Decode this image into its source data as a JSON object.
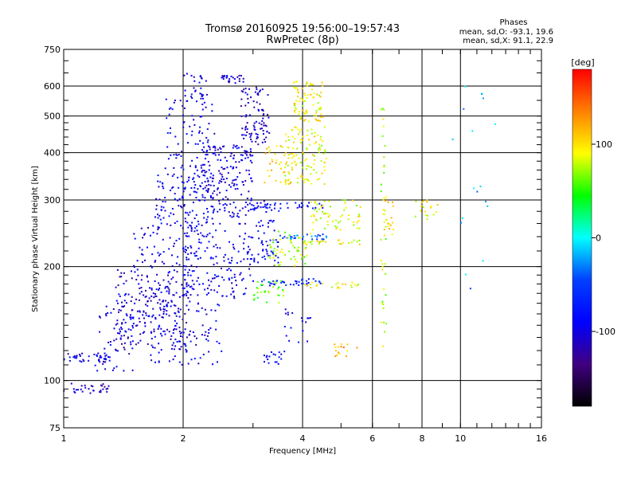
{
  "chart_data": {
    "type": "scatter",
    "title": "Tromsø 20160925 19:56:00–19:57:43",
    "subtitle": "RwPretec (8p)",
    "xlabel": "Frequency [MHz]",
    "ylabel": "Stationary phase Virtual Height [km]",
    "x_scale": "log",
    "y_scale": "log",
    "xlim": [
      1,
      16
    ],
    "ylim": [
      75,
      750
    ],
    "x_ticks": [
      1,
      2,
      4,
      6,
      8,
      10,
      16
    ],
    "y_ticks": [
      75,
      100,
      200,
      300,
      400,
      500,
      600,
      750
    ],
    "grid": true,
    "legend": {
      "heading": "Phases",
      "lines": [
        "mean, sd,O: -93.1, 19.6",
        "mean, sd,X:  91.1, 22.9"
      ],
      "placement": "top-right"
    },
    "colorbar": {
      "label": "[deg]",
      "range": [
        -180,
        180
      ],
      "ticks": [
        100,
        0,
        -100
      ],
      "colors": [
        "#ff0000",
        "#ff8000",
        "#ffff00",
        "#00ff00",
        "#00ffff",
        "#0040ff",
        "#0000ff",
        "#400080",
        "#000000"
      ]
    },
    "clusters": [
      {
        "x": [
          1.0,
          1.3
        ],
        "y": [
          92,
          99
        ],
        "phase": -110,
        "n": 30
      },
      {
        "x": [
          1.0,
          1.35
        ],
        "y": [
          112,
          118
        ],
        "phase": -100,
        "n": 35
      },
      {
        "x": [
          1.2,
          1.5
        ],
        "y": [
          105,
          160
        ],
        "phase": -100,
        "n": 60
      },
      {
        "x": [
          1.35,
          2.1
        ],
        "y": [
          120,
          200
        ],
        "phase": -105,
        "n": 220
      },
      {
        "x": [
          1.6,
          2.5
        ],
        "y": [
          110,
          180
        ],
        "phase": -95,
        "n": 120
      },
      {
        "x": [
          1.5,
          2.2
        ],
        "y": [
          200,
          260
        ],
        "phase": -100,
        "n": 70
      },
      {
        "x": [
          1.7,
          2.4
        ],
        "y": [
          260,
          350
        ],
        "phase": -90,
        "n": 120
      },
      {
        "x": [
          1.8,
          2.4
        ],
        "y": [
          350,
          560
        ],
        "phase": -95,
        "n": 90
      },
      {
        "x": [
          2.0,
          2.3
        ],
        "y": [
          560,
          650
        ],
        "phase": -100,
        "n": 25
      },
      {
        "x": [
          2.5,
          2.85
        ],
        "y": [
          610,
          640
        ],
        "phase": -105,
        "n": 25
      },
      {
        "x": [
          2.2,
          3.0
        ],
        "y": [
          270,
          420
        ],
        "phase": -100,
        "n": 180
      },
      {
        "x": [
          2.8,
          3.3
        ],
        "y": [
          420,
          600
        ],
        "phase": -110,
        "n": 90
      },
      {
        "x": [
          2.0,
          3.0
        ],
        "y": [
          165,
          260
        ],
        "phase": -95,
        "n": 150
      },
      {
        "x": [
          3.0,
          3.5
        ],
        "y": [
          200,
          300
        ],
        "phase": -85,
        "n": 60
      },
      {
        "x": [
          3.0,
          4.5
        ],
        "y": [
          285,
          295
        ],
        "phase": -80,
        "n": 35
      },
      {
        "x": [
          3.0,
          4.5
        ],
        "y": [
          178,
          186
        ],
        "phase": -70,
        "n": 40
      },
      {
        "x": [
          3.5,
          4.6
        ],
        "y": [
          236,
          244
        ],
        "phase": -40,
        "n": 30
      },
      {
        "x": [
          3.2,
          3.6
        ],
        "y": [
          110,
          120
        ],
        "phase": -90,
        "n": 18
      },
      {
        "x": [
          3.6,
          4.2
        ],
        "y": [
          125,
          155
        ],
        "phase": -90,
        "n": 18
      },
      {
        "x": [
          3.6,
          4.6
        ],
        "y": [
          330,
          470
        ],
        "phase": 90,
        "n": 110
      },
      {
        "x": [
          3.8,
          4.5
        ],
        "y": [
          480,
          620
        ],
        "phase": 95,
        "n": 80
      },
      {
        "x": [
          3.2,
          3.8
        ],
        "y": [
          330,
          420
        ],
        "phase": 100,
        "n": 40
      },
      {
        "x": [
          3.3,
          4.2
        ],
        "y": [
          200,
          250
        ],
        "phase": 75,
        "n": 55
      },
      {
        "x": [
          3.0,
          3.6
        ],
        "y": [
          160,
          185
        ],
        "phase": 60,
        "n": 30
      },
      {
        "x": [
          4.0,
          5.6
        ],
        "y": [
          175,
          182
        ],
        "phase": 90,
        "n": 22
      },
      {
        "x": [
          4.0,
          5.6
        ],
        "y": [
          228,
          236
        ],
        "phase": 90,
        "n": 25
      },
      {
        "x": [
          4.2,
          5.6
        ],
        "y": [
          250,
          300
        ],
        "phase": 85,
        "n": 60
      },
      {
        "x": [
          4.8,
          5.5
        ],
        "y": [
          115,
          125
        ],
        "phase": 120,
        "n": 15
      },
      {
        "x": [
          6.3,
          6.5
        ],
        "y": [
          120,
          560
        ],
        "phase": 80,
        "n": 40
      },
      {
        "x": [
          6.4,
          6.8
        ],
        "y": [
          240,
          300
        ],
        "phase": 100,
        "n": 18
      },
      {
        "x": [
          7.6,
          8.8
        ],
        "y": [
          265,
          300
        ],
        "phase": 90,
        "n": 18
      },
      {
        "x": [
          9.5,
          12.5
        ],
        "y": [
          150,
          620
        ],
        "phase": -20,
        "n": 18
      }
    ]
  }
}
